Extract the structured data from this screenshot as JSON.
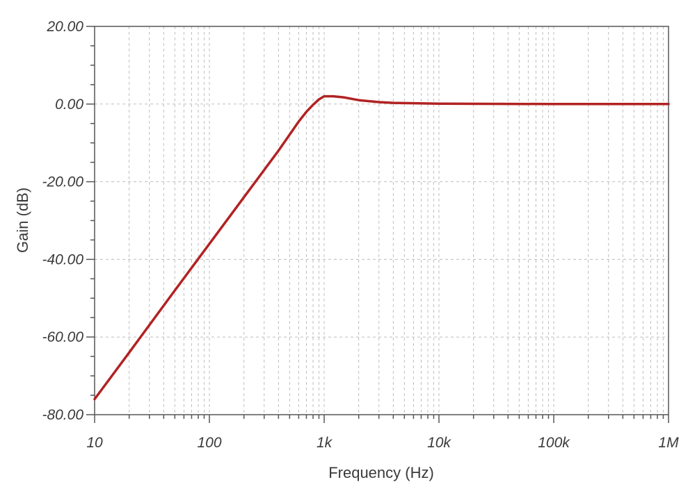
{
  "chart_data": {
    "type": "line",
    "title": "",
    "xlabel": "Frequency (Hz)",
    "ylabel": "Gain (dB)",
    "x_scale": "log",
    "xlim": [
      10,
      1000000
    ],
    "ylim": [
      -80,
      20
    ],
    "grid": true,
    "x_ticks": [
      {
        "value": 10,
        "label": "10"
      },
      {
        "value": 100,
        "label": "100"
      },
      {
        "value": 1000,
        "label": "1k"
      },
      {
        "value": 10000,
        "label": "10k"
      },
      {
        "value": 100000,
        "label": "100k"
      },
      {
        "value": 1000000,
        "label": "1M"
      }
    ],
    "y_ticks": [
      {
        "value": 20,
        "label": "20.00"
      },
      {
        "value": 0,
        "label": "0.00"
      },
      {
        "value": -20,
        "label": "-20.00"
      },
      {
        "value": -40,
        "label": "-40.00"
      },
      {
        "value": -60,
        "label": "-60.00"
      },
      {
        "value": -80,
        "label": "-80.00"
      }
    ],
    "series": [
      {
        "color": "#b22222",
        "x": [
          10,
          20,
          50,
          100,
          200,
          400,
          600,
          700,
          800,
          900,
          1000,
          1200,
          1500,
          2000,
          3000,
          4000,
          10000,
          100000,
          1000000
        ],
        "y": [
          -76,
          -64,
          -48,
          -36,
          -24,
          -12,
          -4.5,
          -2,
          -0.2,
          1.2,
          2,
          2,
          1.7,
          1,
          0.5,
          0.3,
          0.1,
          0,
          0
        ]
      }
    ]
  }
}
